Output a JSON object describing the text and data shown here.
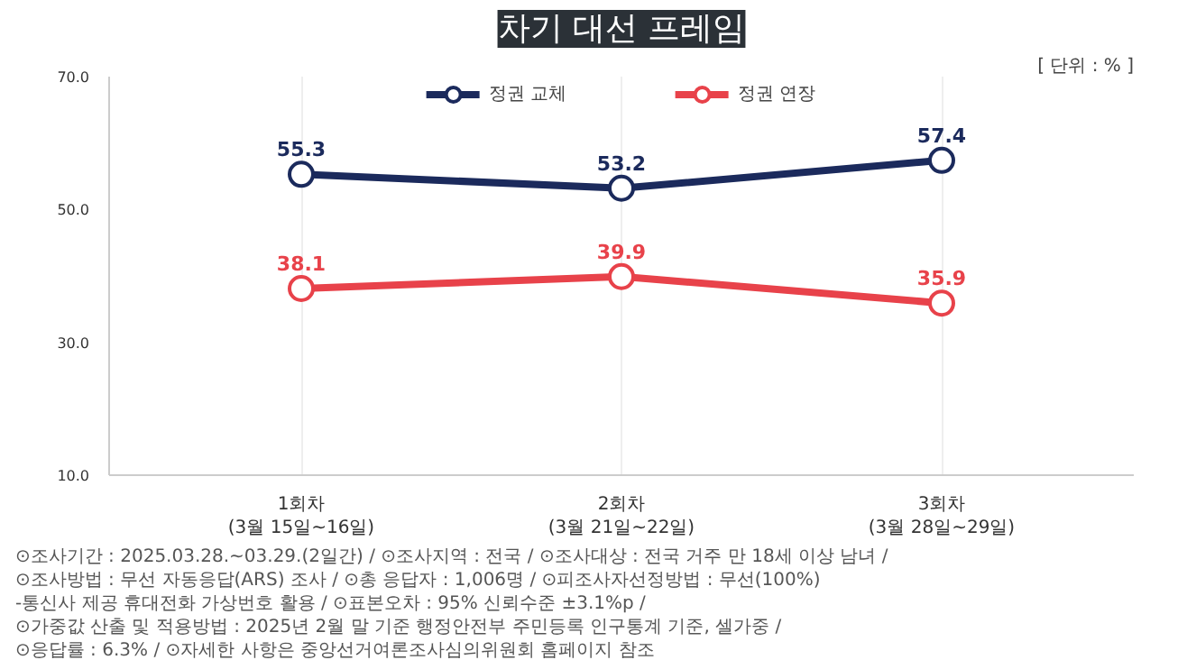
{
  "chart_data": {
    "type": "line",
    "title": "차기 대선 프레임",
    "categories": [
      "1회차\n(3월 15일~16일)",
      "2회차\n(3월 21일~22일)",
      "3회차\n(3월 28일~29일)"
    ],
    "series": [
      {
        "name": "정권 교체",
        "color": "#1b2a5c",
        "values": [
          55.3,
          53.2,
          57.4
        ]
      },
      {
        "name": "정권 연장",
        "color": "#e8424a",
        "values": [
          38.1,
          39.9,
          35.9
        ]
      }
    ],
    "ylim": [
      10,
      70
    ],
    "yticks": [
      {
        "value": 10,
        "label": "10.0"
      },
      {
        "value": 30,
        "label": "30.0"
      },
      {
        "value": 50,
        "label": "50.0"
      },
      {
        "value": 70,
        "label": "70.0"
      }
    ],
    "grid": "x",
    "legend": "top",
    "marker": "circle",
    "line_style": "solid",
    "data_labels": true,
    "annotations": [
      "[ 단위 : % ]",
      "⊙조사기간 : 2025.03.28.~03.29.(2일간) / ⊙조사지역 : 전국 / ⊙조사대상 : 전국 거주 만 18세 이상 남녀 /",
      "⊙조사방법 : 무선 자동응답(ARS) 조사 / ⊙총 응답자 : 1,006명 / ⊙피조사자선정방법 : 무선(100%)",
      "-통신사 제공 휴대전화 가상번호 활용 / ⊙표본오차 : 95% 신뢰수준 ±3.1%p /",
      "⊙가중값 산출 및 적용방법 : 2025년 2월 말 기준 행정안전부 주민등록 인구통계 기준, 셀가중 /",
      "⊙응답률 : 6.3% / ⊙자세한 사항은 중앙선거여론조사심의위원회 홈페이지 참조"
    ]
  }
}
